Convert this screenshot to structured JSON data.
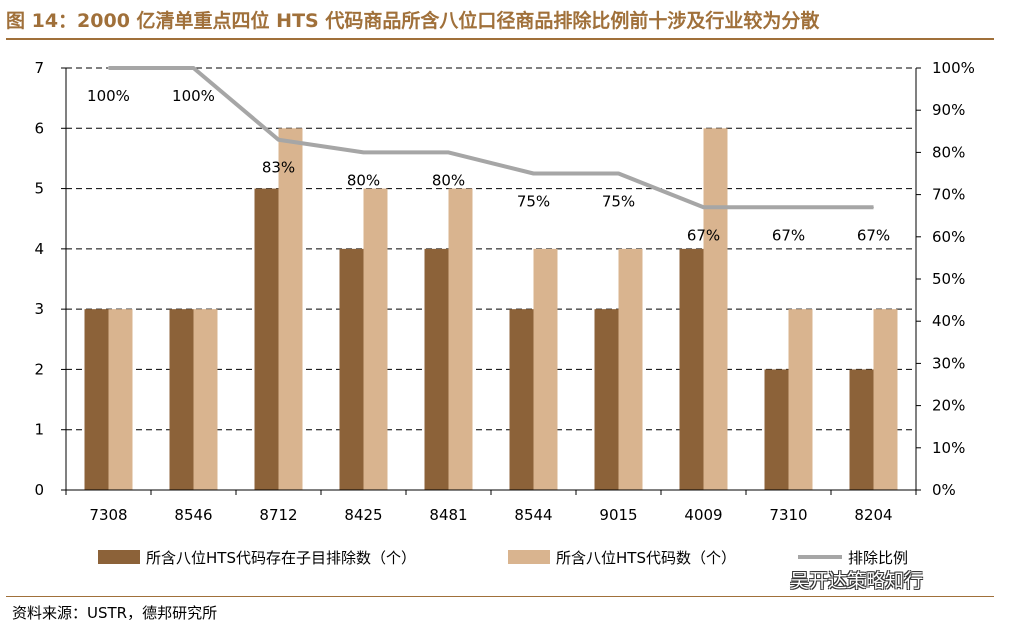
{
  "header": {
    "title": "图 14：2000 亿清单重点四位 HTS 代码商品所含八位口径商品排除比例前十涉及行业较为分散"
  },
  "footer": {
    "source": "资料来源：USTR，德邦研究所",
    "watermark": "吴开达策略知行"
  },
  "chart_data": {
    "type": "bar",
    "categories": [
      "7308",
      "8546",
      "8712",
      "8425",
      "8481",
      "8544",
      "9015",
      "4009",
      "7310",
      "8204"
    ],
    "series": [
      {
        "name": "所含八位HTS代码存在子目排除数（个）",
        "type": "bar",
        "axis": "left",
        "color": "#8c6239",
        "values": [
          3,
          3,
          5,
          4,
          4,
          3,
          3,
          4,
          2,
          2
        ]
      },
      {
        "name": "所含八位HTS代码数（个）",
        "type": "bar",
        "axis": "left",
        "color": "#d9b48f",
        "values": [
          3,
          3,
          6,
          5,
          5,
          4,
          4,
          6,
          3,
          3
        ]
      },
      {
        "name": "排除比例",
        "type": "line",
        "axis": "right",
        "color": "#a6a6a6",
        "values": [
          100,
          100,
          83,
          80,
          80,
          75,
          75,
          67,
          67,
          67
        ]
      }
    ],
    "data_labels": [
      "100%",
      "100%",
      "83%",
      "80%",
      "80%",
      "75%",
      "75%",
      "67%",
      "67%",
      "67%"
    ],
    "ylim_left": [
      0,
      7
    ],
    "yticks_left": [
      "0",
      "1",
      "2",
      "3",
      "4",
      "5",
      "6",
      "7"
    ],
    "ylim_right": [
      0,
      100
    ],
    "yticks_right": [
      "0%",
      "10%",
      "20%",
      "30%",
      "40%",
      "50%",
      "60%",
      "70%",
      "80%",
      "90%",
      "100%"
    ],
    "grid": "dashed horizontal",
    "legend_position": "bottom"
  }
}
